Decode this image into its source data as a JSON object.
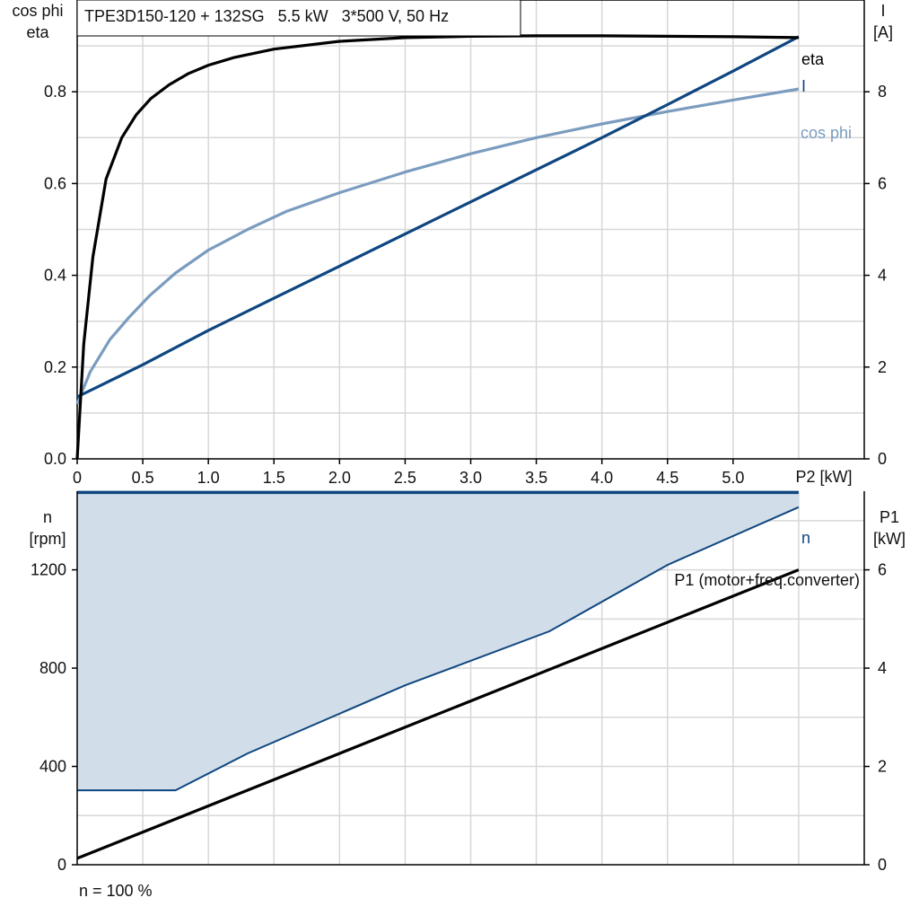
{
  "chart_data": [
    {
      "type": "line",
      "title": "TPE3D150-120 + 132SG   5.5 kW   3*500 V, 50 Hz",
      "xlabel": "P2 [kW]",
      "ylabel_left": [
        "cos phi",
        "eta"
      ],
      "ylabel_right": [
        "I",
        "[A]"
      ],
      "xlim": [
        0,
        6
      ],
      "ylim_left": [
        0,
        1.0
      ],
      "ylim_right": [
        0,
        10
      ],
      "grid": true,
      "x_ticks": [
        "0",
        "0.5",
        "1.0",
        "1.5",
        "2.0",
        "2.5",
        "3.0",
        "3.5",
        "4.0",
        "4.5",
        "5.0"
      ],
      "x_tick_values": [
        0,
        0.5,
        1.0,
        1.5,
        2.0,
        2.5,
        3.0,
        3.5,
        4.0,
        4.5,
        5.0
      ],
      "y_left_ticks": [
        "0.0",
        "0.2",
        "0.4",
        "0.6",
        "0.8"
      ],
      "y_left_tick_values": [
        0,
        0.2,
        0.4,
        0.6,
        0.8
      ],
      "y_right_ticks": [
        "0",
        "2",
        "4",
        "6",
        "8"
      ],
      "y_right_tick_values": [
        0,
        2,
        4,
        6,
        8
      ],
      "series": [
        {
          "name": "eta",
          "axis": "left",
          "color": "#000000",
          "x": [
            0,
            0.05,
            0.12,
            0.22,
            0.34,
            0.45,
            0.56,
            0.7,
            0.85,
            1.0,
            1.2,
            1.5,
            2.0,
            2.5,
            3.0,
            3.5,
            4.0,
            4.5,
            5.0,
            5.5
          ],
          "y": [
            0,
            0.25,
            0.44,
            0.61,
            0.7,
            0.75,
            0.785,
            0.815,
            0.84,
            0.858,
            0.875,
            0.893,
            0.91,
            0.918,
            0.921,
            0.922,
            0.922,
            0.921,
            0.92,
            0.918
          ]
        },
        {
          "name": "I",
          "axis": "right",
          "color": "#0e4680",
          "x": [
            0,
            0.5,
            1.0,
            1.5,
            2.0,
            2.5,
            3.0,
            3.5,
            4.0,
            4.5,
            5.0,
            5.5
          ],
          "y": [
            1.35,
            2.05,
            2.8,
            3.5,
            4.2,
            4.9,
            5.6,
            6.3,
            7.0,
            7.72,
            8.45,
            9.2
          ]
        },
        {
          "name": "cos phi",
          "axis": "left",
          "color": "#7b9cbf",
          "x": [
            0,
            0.1,
            0.25,
            0.4,
            0.55,
            0.75,
            1.0,
            1.3,
            1.6,
            2.0,
            2.5,
            3.0,
            3.5,
            4.0,
            4.5,
            5.0,
            5.5
          ],
          "y": [
            0.12,
            0.19,
            0.26,
            0.31,
            0.355,
            0.405,
            0.455,
            0.5,
            0.54,
            0.58,
            0.625,
            0.665,
            0.7,
            0.73,
            0.757,
            0.782,
            0.806
          ]
        }
      ]
    },
    {
      "type": "area",
      "xlabel": "",
      "ylabel_left": [
        "n",
        "[rpm]"
      ],
      "ylabel_right": [
        "P1",
        "[kW]"
      ],
      "xlim": [
        0,
        6
      ],
      "ylim_left": [
        0,
        1520
      ],
      "ylim_right": [
        0,
        7.6
      ],
      "grid": true,
      "y_left_ticks": [
        "0",
        "400",
        "800",
        "1200"
      ],
      "y_left_tick_values": [
        0,
        400,
        800,
        1200
      ],
      "y_right_ticks": [
        "0",
        "2",
        "4",
        "6"
      ],
      "y_right_tick_values": [
        0,
        2,
        4,
        6
      ],
      "band": {
        "name": "n",
        "color": "#0e4680",
        "fill": "#d1dde8",
        "upper_x": [
          0,
          5.5
        ],
        "upper_y": [
          1515,
          1515
        ],
        "lower_x": [
          0,
          0.75,
          1.3,
          2.5,
          3.6,
          4.5,
          5.5
        ],
        "lower_y": [
          303,
          303,
          453,
          730,
          950,
          1220,
          1455
        ]
      },
      "series": [
        {
          "name": "P1 (motor+freq.converter)",
          "axis": "right",
          "color": "#000000",
          "x": [
            0,
            5.5
          ],
          "y": [
            0.13,
            6.0
          ]
        }
      ],
      "footnote": "n = 100 %"
    }
  ]
}
